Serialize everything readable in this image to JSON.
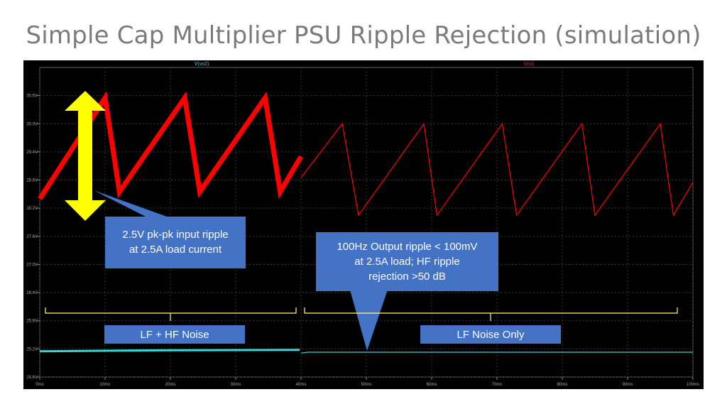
{
  "slide": {
    "title": "Simple Cap Multiplier PSU Ripple Rejection (simulation)"
  },
  "chart_data": {
    "type": "line",
    "x_unit": "ms",
    "xlim": [
      0,
      100
    ],
    "ylim": [
      24.6,
      31.2
    ],
    "x_ticks": [
      0,
      10,
      20,
      30,
      40,
      50,
      60,
      70,
      80,
      90,
      100
    ],
    "x_tick_labels": [
      "0ms",
      "10ms",
      "20ms",
      "30ms",
      "40ms",
      "50ms",
      "60ms",
      "70ms",
      "80ms",
      "90ms",
      "100ms"
    ],
    "y_ticks": [
      24.6,
      25.2,
      25.8,
      26.4,
      27.0,
      27.6,
      28.2,
      28.8,
      29.4,
      30.0,
      30.6
    ],
    "y_tick_labels": [
      "24.6V",
      "25.2V",
      "25.8V",
      "26.4V",
      "27.0V",
      "27.6V",
      "28.2V",
      "28.8V",
      "29.4V",
      "30.0V",
      "30.6V"
    ],
    "grid": true,
    "series": [
      {
        "name": "V(vi)",
        "color": "#ff0000",
        "segments": [
          {
            "style": "thick",
            "x": [
              0,
              10,
              12.2,
              22.2,
              24.5,
              34.5,
              36.8,
              40
            ],
            "y": [
              28.4,
              30.55,
              28.55,
              30.55,
              28.55,
              30.55,
              28.55,
              29.3
            ]
          },
          {
            "style": "thin",
            "x": [
              40,
              46.3,
              48.8,
              58.8,
              60.8,
              70.8,
              73.0,
              83.0,
              85.0,
              95.0,
              97.0,
              100
            ],
            "y": [
              28.85,
              30.0,
              28.05,
              30.0,
              28.05,
              30.0,
              28.05,
              30.0,
              28.05,
              30.0,
              28.05,
              28.75
            ]
          }
        ]
      },
      {
        "name": "V(vo2)",
        "color": "#39d5d5",
        "segments": [
          {
            "style": "thick",
            "x": [
              0,
              20,
              39.8
            ],
            "y": [
              25.15,
              25.17,
              25.18
            ]
          },
          {
            "style": "thin",
            "x": [
              40,
              41,
              100
            ],
            "y": [
              25.11,
              25.13,
              25.13
            ]
          }
        ]
      }
    ],
    "annotations": {
      "input_ripple": [
        "2.5V pk-pk input ripple",
        "at 2.5A load current"
      ],
      "output_ripple": [
        "100Hz Output ripple < 100mV",
        "at 2.5A load; HF ripple",
        "rejection >50 dB"
      ],
      "region_left": "LF + HF Noise",
      "region_right": "LF Noise Only"
    },
    "colors": {
      "callout": "#4472c4",
      "arrow": "#ffff00",
      "brace": "#ffff66",
      "plot_bg": "#000000",
      "grid": "#3a3a3a"
    }
  }
}
